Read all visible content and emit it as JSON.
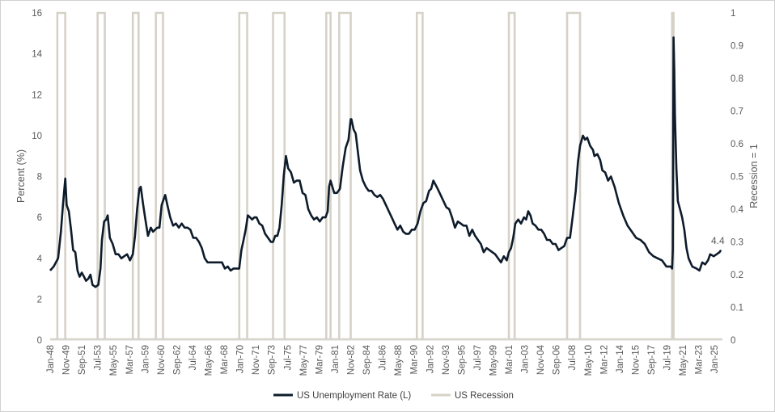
{
  "chart_data": {
    "type": "line",
    "title": "",
    "ylabel": "Percent (%)",
    "y2label": "Recession = 1",
    "ylim": [
      0,
      16
    ],
    "yticks": [
      "0",
      "2",
      "4",
      "6",
      "8",
      "10",
      "12",
      "14",
      "16"
    ],
    "y2lim": [
      0,
      1
    ],
    "y2ticks": [
      "0",
      "0.1",
      "0.2",
      "0.3",
      "0.4",
      "0.5",
      "0.6",
      "0.7",
      "0.8",
      "0.9",
      "1"
    ],
    "xlim": [
      "1948-01",
      "2025-12"
    ],
    "xticks": [
      "Jan-48",
      "Nov-49",
      "Sep-51",
      "Jul-53",
      "May-55",
      "Mar-57",
      "Jan-59",
      "Nov-60",
      "Sep-62",
      "Jul-64",
      "May-66",
      "Mar-68",
      "Jan-70",
      "Nov-71",
      "Sep-73",
      "Jul-75",
      "May-77",
      "Mar-79",
      "Jan-81",
      "Nov-82",
      "Sep-84",
      "Jul-86",
      "May-88",
      "Mar-90",
      "Jan-92",
      "Nov-93",
      "Sep-95",
      "Jul-97",
      "May-99",
      "Mar-01",
      "Jan-03",
      "Nov-04",
      "Sep-06",
      "Jul-08",
      "May-10",
      "Mar-12",
      "Jan-14",
      "Nov-15",
      "Sep-17",
      "Jul-19",
      "May-21",
      "Mar-23",
      "Jan-25"
    ],
    "grid": false,
    "legend_position": "bottom",
    "annotation": "4.4",
    "series": [
      {
        "name": "US Unemployment Rate (L)",
        "axis": "left",
        "color": "#0d1b2a",
        "points": [
          [
            "1948-01",
            3.4
          ],
          [
            "1948-06",
            3.6
          ],
          [
            "1948-12",
            4.0
          ],
          [
            "1949-04",
            5.3
          ],
          [
            "1949-07",
            6.7
          ],
          [
            "1949-10",
            7.9
          ],
          [
            "1949-12",
            6.6
          ],
          [
            "1950-03",
            6.3
          ],
          [
            "1950-06",
            5.4
          ],
          [
            "1950-09",
            4.4
          ],
          [
            "1950-12",
            4.3
          ],
          [
            "1951-03",
            3.4
          ],
          [
            "1951-06",
            3.1
          ],
          [
            "1951-09",
            3.3
          ],
          [
            "1951-12",
            3.1
          ],
          [
            "1952-03",
            2.9
          ],
          [
            "1952-06",
            3.0
          ],
          [
            "1952-09",
            3.2
          ],
          [
            "1952-12",
            2.7
          ],
          [
            "1953-04",
            2.6
          ],
          [
            "1953-08",
            2.7
          ],
          [
            "1953-11",
            3.5
          ],
          [
            "1954-01",
            4.9
          ],
          [
            "1954-04",
            5.8
          ],
          [
            "1954-07",
            5.9
          ],
          [
            "1954-09",
            6.1
          ],
          [
            "1954-12",
            5.0
          ],
          [
            "1955-04",
            4.7
          ],
          [
            "1955-08",
            4.2
          ],
          [
            "1955-12",
            4.2
          ],
          [
            "1956-04",
            4.0
          ],
          [
            "1956-08",
            4.1
          ],
          [
            "1956-12",
            4.2
          ],
          [
            "1957-04",
            3.9
          ],
          [
            "1957-08",
            4.2
          ],
          [
            "1957-11",
            5.1
          ],
          [
            "1958-02",
            6.4
          ],
          [
            "1958-05",
            7.4
          ],
          [
            "1958-07",
            7.5
          ],
          [
            "1958-10",
            6.7
          ],
          [
            "1959-01",
            6.0
          ],
          [
            "1959-05",
            5.1
          ],
          [
            "1959-09",
            5.5
          ],
          [
            "1959-12",
            5.3
          ],
          [
            "1960-03",
            5.4
          ],
          [
            "1960-06",
            5.5
          ],
          [
            "1960-09",
            5.5
          ],
          [
            "1960-12",
            6.6
          ],
          [
            "1961-03",
            6.9
          ],
          [
            "1961-05",
            7.1
          ],
          [
            "1961-08",
            6.6
          ],
          [
            "1961-12",
            6.0
          ],
          [
            "1962-04",
            5.6
          ],
          [
            "1962-08",
            5.7
          ],
          [
            "1962-12",
            5.5
          ],
          [
            "1963-04",
            5.7
          ],
          [
            "1963-08",
            5.5
          ],
          [
            "1963-12",
            5.5
          ],
          [
            "1964-04",
            5.4
          ],
          [
            "1964-08",
            5.0
          ],
          [
            "1964-12",
            5.0
          ],
          [
            "1965-04",
            4.8
          ],
          [
            "1965-08",
            4.5
          ],
          [
            "1965-12",
            4.0
          ],
          [
            "1966-04",
            3.8
          ],
          [
            "1966-08",
            3.8
          ],
          [
            "1966-12",
            3.8
          ],
          [
            "1967-04",
            3.8
          ],
          [
            "1967-08",
            3.8
          ],
          [
            "1967-12",
            3.8
          ],
          [
            "1968-04",
            3.5
          ],
          [
            "1968-08",
            3.6
          ],
          [
            "1968-12",
            3.4
          ],
          [
            "1969-04",
            3.5
          ],
          [
            "1969-08",
            3.5
          ],
          [
            "1969-12",
            3.5
          ],
          [
            "1970-03",
            4.4
          ],
          [
            "1970-06",
            4.9
          ],
          [
            "1970-09",
            5.4
          ],
          [
            "1970-12",
            6.1
          ],
          [
            "1971-03",
            6.0
          ],
          [
            "1971-06",
            5.9
          ],
          [
            "1971-09",
            6.0
          ],
          [
            "1971-12",
            6.0
          ],
          [
            "1972-04",
            5.7
          ],
          [
            "1972-08",
            5.6
          ],
          [
            "1972-12",
            5.2
          ],
          [
            "1973-04",
            5.0
          ],
          [
            "1973-08",
            4.8
          ],
          [
            "1973-11",
            4.8
          ],
          [
            "1974-02",
            5.1
          ],
          [
            "1974-05",
            5.1
          ],
          [
            "1974-08",
            5.5
          ],
          [
            "1974-11",
            6.6
          ],
          [
            "1975-02",
            8.1
          ],
          [
            "1975-05",
            9.0
          ],
          [
            "1975-08",
            8.4
          ],
          [
            "1975-12",
            8.2
          ],
          [
            "1976-04",
            7.7
          ],
          [
            "1976-08",
            7.8
          ],
          [
            "1976-12",
            7.8
          ],
          [
            "1977-04",
            7.2
          ],
          [
            "1977-08",
            7.1
          ],
          [
            "1977-12",
            6.4
          ],
          [
            "1978-04",
            6.1
          ],
          [
            "1978-08",
            5.9
          ],
          [
            "1978-12",
            6.0
          ],
          [
            "1979-04",
            5.8
          ],
          [
            "1979-08",
            6.0
          ],
          [
            "1979-12",
            6.0
          ],
          [
            "1980-03",
            6.3
          ],
          [
            "1980-05",
            7.5
          ],
          [
            "1980-07",
            7.8
          ],
          [
            "1980-12",
            7.2
          ],
          [
            "1981-04",
            7.2
          ],
          [
            "1981-08",
            7.4
          ],
          [
            "1981-12",
            8.5
          ],
          [
            "1982-04",
            9.4
          ],
          [
            "1982-08",
            9.8
          ],
          [
            "1982-11",
            10.8
          ],
          [
            "1982-12",
            10.8
          ],
          [
            "1983-03",
            10.3
          ],
          [
            "1983-06",
            10.1
          ],
          [
            "1983-09",
            9.2
          ],
          [
            "1983-12",
            8.3
          ],
          [
            "1984-04",
            7.8
          ],
          [
            "1984-08",
            7.5
          ],
          [
            "1984-12",
            7.3
          ],
          [
            "1985-04",
            7.3
          ],
          [
            "1985-08",
            7.1
          ],
          [
            "1985-12",
            7.0
          ],
          [
            "1986-04",
            7.1
          ],
          [
            "1986-08",
            6.9
          ],
          [
            "1986-12",
            6.6
          ],
          [
            "1987-04",
            6.3
          ],
          [
            "1987-08",
            6.0
          ],
          [
            "1987-12",
            5.7
          ],
          [
            "1988-04",
            5.4
          ],
          [
            "1988-08",
            5.6
          ],
          [
            "1988-12",
            5.3
          ],
          [
            "1989-04",
            5.2
          ],
          [
            "1989-08",
            5.2
          ],
          [
            "1989-12",
            5.4
          ],
          [
            "1990-04",
            5.4
          ],
          [
            "1990-08",
            5.7
          ],
          [
            "1990-12",
            6.3
          ],
          [
            "1991-04",
            6.7
          ],
          [
            "1991-08",
            6.8
          ],
          [
            "1991-12",
            7.3
          ],
          [
            "1992-03",
            7.4
          ],
          [
            "1992-06",
            7.8
          ],
          [
            "1992-09",
            7.6
          ],
          [
            "1992-12",
            7.4
          ],
          [
            "1993-04",
            7.1
          ],
          [
            "1993-08",
            6.8
          ],
          [
            "1993-12",
            6.5
          ],
          [
            "1994-04",
            6.4
          ],
          [
            "1994-08",
            6.0
          ],
          [
            "1994-12",
            5.5
          ],
          [
            "1995-04",
            5.8
          ],
          [
            "1995-08",
            5.7
          ],
          [
            "1995-12",
            5.6
          ],
          [
            "1996-04",
            5.6
          ],
          [
            "1996-08",
            5.1
          ],
          [
            "1996-12",
            5.4
          ],
          [
            "1997-04",
            5.1
          ],
          [
            "1997-08",
            4.9
          ],
          [
            "1997-12",
            4.7
          ],
          [
            "1998-04",
            4.3
          ],
          [
            "1998-08",
            4.5
          ],
          [
            "1998-12",
            4.4
          ],
          [
            "1999-04",
            4.3
          ],
          [
            "1999-08",
            4.2
          ],
          [
            "1999-12",
            4.0
          ],
          [
            "2000-04",
            3.8
          ],
          [
            "2000-08",
            4.1
          ],
          [
            "2000-12",
            3.9
          ],
          [
            "2001-03",
            4.3
          ],
          [
            "2001-06",
            4.5
          ],
          [
            "2001-09",
            5.0
          ],
          [
            "2001-12",
            5.7
          ],
          [
            "2002-04",
            5.9
          ],
          [
            "2002-08",
            5.7
          ],
          [
            "2002-12",
            6.0
          ],
          [
            "2003-03",
            5.9
          ],
          [
            "2003-06",
            6.3
          ],
          [
            "2003-09",
            6.1
          ],
          [
            "2003-12",
            5.7
          ],
          [
            "2004-04",
            5.6
          ],
          [
            "2004-08",
            5.4
          ],
          [
            "2004-12",
            5.4
          ],
          [
            "2005-04",
            5.2
          ],
          [
            "2005-08",
            4.9
          ],
          [
            "2005-12",
            4.9
          ],
          [
            "2006-04",
            4.7
          ],
          [
            "2006-08",
            4.7
          ],
          [
            "2006-12",
            4.4
          ],
          [
            "2007-04",
            4.5
          ],
          [
            "2007-08",
            4.6
          ],
          [
            "2007-12",
            5.0
          ],
          [
            "2008-04",
            5.0
          ],
          [
            "2008-08",
            6.1
          ],
          [
            "2008-12",
            7.3
          ],
          [
            "2009-03",
            8.7
          ],
          [
            "2009-06",
            9.5
          ],
          [
            "2009-10",
            10.0
          ],
          [
            "2010-01",
            9.8
          ],
          [
            "2010-04",
            9.9
          ],
          [
            "2010-08",
            9.5
          ],
          [
            "2010-12",
            9.3
          ],
          [
            "2011-02",
            9.0
          ],
          [
            "2011-06",
            9.1
          ],
          [
            "2011-10",
            8.8
          ],
          [
            "2012-01",
            8.3
          ],
          [
            "2012-05",
            8.2
          ],
          [
            "2012-09",
            7.8
          ],
          [
            "2013-01",
            8.0
          ],
          [
            "2013-06",
            7.5
          ],
          [
            "2013-12",
            6.7
          ],
          [
            "2014-06",
            6.1
          ],
          [
            "2014-12",
            5.6
          ],
          [
            "2015-06",
            5.3
          ],
          [
            "2015-12",
            5.0
          ],
          [
            "2016-06",
            4.9
          ],
          [
            "2016-12",
            4.7
          ],
          [
            "2017-06",
            4.3
          ],
          [
            "2017-12",
            4.1
          ],
          [
            "2018-06",
            4.0
          ],
          [
            "2018-12",
            3.9
          ],
          [
            "2019-06",
            3.6
          ],
          [
            "2019-12",
            3.6
          ],
          [
            "2020-02",
            3.5
          ],
          [
            "2020-03",
            4.4
          ],
          [
            "2020-04",
            14.8
          ],
          [
            "2020-05",
            13.2
          ],
          [
            "2020-06",
            11.0
          ],
          [
            "2020-08",
            8.4
          ],
          [
            "2020-10",
            6.8
          ],
          [
            "2021-01",
            6.4
          ],
          [
            "2021-04",
            6.0
          ],
          [
            "2021-07",
            5.4
          ],
          [
            "2021-10",
            4.5
          ],
          [
            "2022-01",
            4.0
          ],
          [
            "2022-06",
            3.6
          ],
          [
            "2022-12",
            3.5
          ],
          [
            "2023-04",
            3.4
          ],
          [
            "2023-08",
            3.8
          ],
          [
            "2023-12",
            3.7
          ],
          [
            "2024-04",
            3.9
          ],
          [
            "2024-07",
            4.2
          ],
          [
            "2024-12",
            4.1
          ],
          [
            "2025-04",
            4.2
          ],
          [
            "2025-08",
            4.3
          ],
          [
            "2025-10",
            4.4
          ]
        ]
      },
      {
        "name": "US Recession",
        "axis": "right",
        "color": "#d6d2c8",
        "periods": [
          [
            "1948-11",
            "1949-10"
          ],
          [
            "1953-07",
            "1954-05"
          ],
          [
            "1957-08",
            "1958-04"
          ],
          [
            "1960-04",
            "1961-02"
          ],
          [
            "1969-12",
            "1970-11"
          ],
          [
            "1973-11",
            "1975-03"
          ],
          [
            "1980-01",
            "1980-07"
          ],
          [
            "1981-07",
            "1982-11"
          ],
          [
            "1990-07",
            "1991-03"
          ],
          [
            "2001-03",
            "2001-11"
          ],
          [
            "2007-12",
            "2009-06"
          ],
          [
            "2020-02",
            "2020-04"
          ]
        ]
      }
    ]
  }
}
